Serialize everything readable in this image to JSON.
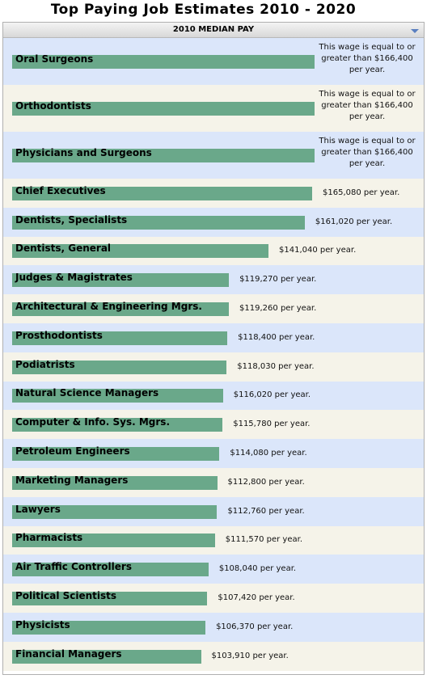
{
  "chart_data": {
    "type": "bar",
    "orientation": "horizontal",
    "title": "Top Paying Job Estimates 2010 - 2020",
    "header": "2010 MEDIAN PAY",
    "color": "#6aa88a",
    "row_colors": [
      "#dbe6fa",
      "#f5f3e9"
    ],
    "categories": [
      "Oral Surgeons",
      "Orthodontists",
      "Physicians and Surgeons",
      "Chief Executives",
      "Dentists, Specialists",
      "Dentists, General",
      "Judges & Magistrates",
      "Architectural & Engineering Mgrs.",
      "Prosthodontists",
      "Podiatrists",
      "Natural Science Managers",
      "Computer & Info. Sys. Mgrs.",
      "Petroleum Engineers",
      "Marketing Managers",
      "Lawyers",
      "Pharmacists",
      "Air Traffic Controllers",
      "Political Scientists",
      "Physicists",
      "Financial Managers"
    ],
    "values": [
      166400,
      166400,
      166400,
      165080,
      161020,
      141040,
      119270,
      119260,
      118400,
      118030,
      116020,
      115780,
      114080,
      112800,
      112760,
      111570,
      108040,
      107420,
      106370,
      103910
    ],
    "value_labels": [
      "This wage is equal to or greater than $166,400 per year.",
      "This wage is equal to or greater than $166,400 per year.",
      "This wage is equal to or greater than $166,400 per year.",
      "$165,080 per year.",
      "$161,020 per year.",
      "$141,040 per year.",
      "$119,270 per year.",
      "$119,260 per year.",
      "$118,400 per year.",
      "$118,030 per year.",
      "$116,020 per year.",
      "$115,780 per year.",
      "$114,080 per year.",
      "$112,800 per year.",
      "$112,760 per year.",
      "$111,570 per year.",
      "$108,040 per year.",
      "$107,420 per year.",
      "$106,370 per year.",
      "$103,910 per year."
    ]
  }
}
